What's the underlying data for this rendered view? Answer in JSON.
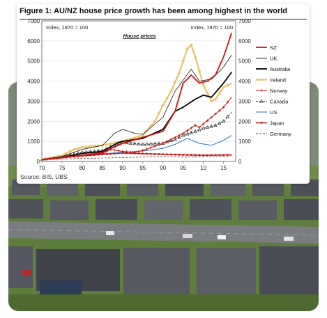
{
  "figure": {
    "title": "Figure 1: AU/NZ house price growth has been among highest in the world",
    "source": "Source: BIS, UBS"
  },
  "chart_data": {
    "type": "line",
    "subtitle": "House prices",
    "index_note_left": "Index, 1970 = 100",
    "index_note_right": "Index, 1970 = 100",
    "xlim": [
      1970,
      2018
    ],
    "ylim": [
      0,
      7000
    ],
    "x_ticks": [
      "70",
      "75",
      "80",
      "85",
      "90",
      "95",
      "00",
      "05",
      "10",
      "15"
    ],
    "y_ticks": [
      "0",
      "1000",
      "2000",
      "3000",
      "4000",
      "5000",
      "6000",
      "7000"
    ],
    "legend_position": "right",
    "series": [
      {
        "name": "NZ",
        "color": "#cc1111",
        "style": "solid",
        "width": 1.8,
        "points": [
          [
            1970,
            100
          ],
          [
            1975,
            200
          ],
          [
            1980,
            300
          ],
          [
            1985,
            450
          ],
          [
            1990,
            900
          ],
          [
            1995,
            1200
          ],
          [
            2000,
            1500
          ],
          [
            2003,
            2500
          ],
          [
            2005,
            3900
          ],
          [
            2007,
            4300
          ],
          [
            2009,
            3900
          ],
          [
            2011,
            4000
          ],
          [
            2013,
            4300
          ],
          [
            2015,
            5200
          ],
          [
            2016,
            5800
          ],
          [
            2017,
            6400
          ]
        ]
      },
      {
        "name": "UK",
        "color": "#111111",
        "style": "solid",
        "width": 0.8,
        "points": [
          [
            1970,
            100
          ],
          [
            1975,
            250
          ],
          [
            1980,
            600
          ],
          [
            1985,
            800
          ],
          [
            1988,
            1400
          ],
          [
            1990,
            1600
          ],
          [
            1993,
            1400
          ],
          [
            1995,
            1350
          ],
          [
            2000,
            2200
          ],
          [
            2003,
            3500
          ],
          [
            2007,
            4600
          ],
          [
            2009,
            4000
          ],
          [
            2012,
            4100
          ],
          [
            2015,
            4700
          ],
          [
            2017,
            5300
          ]
        ]
      },
      {
        "name": "Australia",
        "color": "#000000",
        "style": "solid",
        "width": 1.8,
        "points": [
          [
            1970,
            100
          ],
          [
            1975,
            200
          ],
          [
            1980,
            400
          ],
          [
            1985,
            500
          ],
          [
            1989,
            950
          ],
          [
            1990,
            1000
          ],
          [
            1995,
            1150
          ],
          [
            2000,
            1600
          ],
          [
            2003,
            2500
          ],
          [
            2005,
            2700
          ],
          [
            2008,
            3100
          ],
          [
            2010,
            3300
          ],
          [
            2012,
            3200
          ],
          [
            2015,
            3900
          ],
          [
            2017,
            4450
          ]
        ]
      },
      {
        "name": "Ireland",
        "color": "#e8c36a",
        "style": "solid",
        "width": 2.2,
        "marker": "diamond",
        "points": [
          [
            1970,
            100
          ],
          [
            1975,
            300
          ],
          [
            1978,
            600
          ],
          [
            1980,
            700
          ],
          [
            1985,
            800
          ],
          [
            1990,
            1000
          ],
          [
            1995,
            1300
          ],
          [
            1998,
            2000
          ],
          [
            2000,
            2800
          ],
          [
            2002,
            3500
          ],
          [
            2004,
            4400
          ],
          [
            2006,
            5600
          ],
          [
            2007,
            5800
          ],
          [
            2008,
            5200
          ],
          [
            2010,
            3800
          ],
          [
            2012,
            3000
          ],
          [
            2013,
            3100
          ],
          [
            2015,
            3700
          ],
          [
            2017,
            3900
          ]
        ]
      },
      {
        "name": "Norway",
        "color": "#cc1111",
        "style": "solid",
        "width": 1.0,
        "marker": "plus",
        "points": [
          [
            1970,
            100
          ],
          [
            1975,
            180
          ],
          [
            1980,
            280
          ],
          [
            1985,
            400
          ],
          [
            1987,
            600
          ],
          [
            1990,
            500
          ],
          [
            1993,
            450
          ],
          [
            1995,
            550
          ],
          [
            2000,
            900
          ],
          [
            2005,
            1400
          ],
          [
            2008,
            1800
          ],
          [
            2009,
            1700
          ],
          [
            2012,
            2200
          ],
          [
            2015,
            2700
          ],
          [
            2017,
            3200
          ]
        ]
      },
      {
        "name": "Canada",
        "color": "#333333",
        "style": "dashed",
        "width": 1.0,
        "marker": "triangle",
        "points": [
          [
            1970,
            100
          ],
          [
            1975,
            250
          ],
          [
            1980,
            450
          ],
          [
            1985,
            550
          ],
          [
            1989,
            900
          ],
          [
            1990,
            950
          ],
          [
            1995,
            850
          ],
          [
            2000,
            900
          ],
          [
            2003,
            1100
          ],
          [
            2005,
            1300
          ],
          [
            2008,
            1500
          ],
          [
            2010,
            1650
          ],
          [
            2013,
            1800
          ],
          [
            2015,
            2000
          ],
          [
            2017,
            2450
          ]
        ]
      },
      {
        "name": "US",
        "color": "#2a6db5",
        "style": "solid",
        "width": 1.0,
        "points": [
          [
            1970,
            100
          ],
          [
            1975,
            180
          ],
          [
            1980,
            300
          ],
          [
            1985,
            380
          ],
          [
            1990,
            450
          ],
          [
            1995,
            520
          ],
          [
            2000,
            650
          ],
          [
            2003,
            850
          ],
          [
            2006,
            1150
          ],
          [
            2009,
            900
          ],
          [
            2012,
            800
          ],
          [
            2015,
            1050
          ],
          [
            2017,
            1300
          ]
        ]
      },
      {
        "name": "Japan",
        "color": "#cc1111",
        "style": "solid",
        "width": 1.5,
        "marker": "star",
        "points": [
          [
            1970,
            100
          ],
          [
            1975,
            200
          ],
          [
            1980,
            280
          ],
          [
            1985,
            350
          ],
          [
            1990,
            420
          ],
          [
            1995,
            390
          ],
          [
            2000,
            360
          ],
          [
            2005,
            330
          ],
          [
            2010,
            310
          ],
          [
            2015,
            320
          ],
          [
            2017,
            330
          ]
        ]
      },
      {
        "name": "Germany",
        "color": "#8b2222",
        "style": "dashed",
        "width": 0.8,
        "points": [
          [
            1970,
            100
          ],
          [
            1975,
            120
          ],
          [
            1980,
            150
          ],
          [
            1985,
            170
          ],
          [
            1990,
            190
          ],
          [
            1995,
            220
          ],
          [
            2000,
            230
          ],
          [
            2005,
            220
          ],
          [
            2010,
            220
          ],
          [
            2015,
            250
          ],
          [
            2017,
            280
          ]
        ]
      }
    ]
  },
  "photo": {
    "sky_color": "#8aa6c4",
    "roof_color": "#4a4d55",
    "grass_color": "#5d7b3a",
    "road_color": "#7a7d80"
  }
}
